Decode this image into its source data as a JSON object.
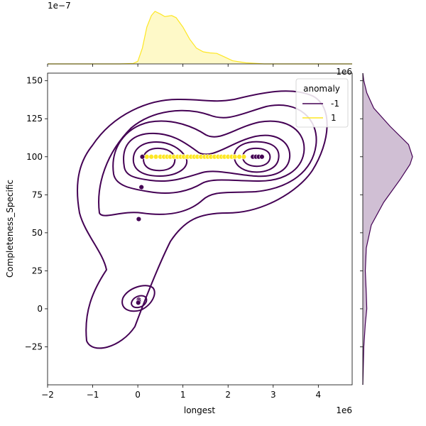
{
  "chart_data": {
    "type": "scatter",
    "subtype": "jointplot-kde",
    "xlabel": "longest",
    "ylabel": "Completeness_Specific",
    "x_offset_label": "1e6",
    "x_offset_label_top": "1e6",
    "top_marginal_offset_label": "1e−7",
    "xlim": [
      -2,
      4.75
    ],
    "ylim": [
      -50,
      155
    ],
    "x_unit_multiplier": 1000000,
    "xticks": [
      -2,
      -1,
      0,
      1,
      2,
      3,
      4
    ],
    "yticks": [
      -25,
      0,
      25,
      50,
      75,
      100,
      125,
      150
    ],
    "grid": false,
    "legend": {
      "title": "anomaly",
      "placement": "top-right",
      "entries": [
        {
          "label": "-1",
          "color": "#440154"
        },
        {
          "label": "1",
          "color": "#fde725"
        }
      ]
    },
    "series": [
      {
        "name": "-1",
        "color": "#440154",
        "points": [
          [
            0.1,
            100
          ],
          [
            0.08,
            80
          ],
          [
            0.02,
            59
          ],
          [
            0.02,
            6
          ],
          [
            0.02,
            5
          ],
          [
            0.01,
            4
          ],
          [
            2.55,
            100
          ],
          [
            2.62,
            100
          ],
          [
            2.68,
            100
          ],
          [
            2.75,
            100
          ]
        ]
      },
      {
        "name": "1",
        "color": "#fde725",
        "points": [
          [
            0.2,
            100
          ],
          [
            0.3,
            100
          ],
          [
            0.4,
            100
          ],
          [
            0.5,
            100
          ],
          [
            0.58,
            100
          ],
          [
            0.65,
            100
          ],
          [
            0.72,
            100
          ],
          [
            0.8,
            100
          ],
          [
            0.88,
            100
          ],
          [
            0.95,
            100
          ],
          [
            1.02,
            100
          ],
          [
            1.1,
            100
          ],
          [
            1.18,
            100
          ],
          [
            1.25,
            100
          ],
          [
            1.32,
            100
          ],
          [
            1.4,
            100
          ],
          [
            1.48,
            100
          ],
          [
            1.55,
            100
          ],
          [
            1.62,
            100
          ],
          [
            1.7,
            100
          ],
          [
            1.78,
            100
          ],
          [
            1.85,
            100
          ],
          [
            1.92,
            100
          ],
          [
            2.0,
            100
          ],
          [
            2.08,
            100
          ],
          [
            2.15,
            100
          ],
          [
            2.25,
            100
          ],
          [
            2.35,
            100
          ]
        ]
      }
    ],
    "marginal_x": {
      "series": "1",
      "color": "#fde725",
      "density": [
        [
          -2,
          0
        ],
        [
          -0.4,
          0
        ],
        [
          -0.1,
          0.01
        ],
        [
          0.0,
          0.05
        ],
        [
          0.1,
          0.3
        ],
        [
          0.2,
          0.7
        ],
        [
          0.3,
          0.92
        ],
        [
          0.38,
          1.0
        ],
        [
          0.5,
          0.95
        ],
        [
          0.6,
          0.9
        ],
        [
          0.75,
          0.92
        ],
        [
          0.85,
          0.88
        ],
        [
          1.0,
          0.7
        ],
        [
          1.15,
          0.47
        ],
        [
          1.3,
          0.3
        ],
        [
          1.45,
          0.23
        ],
        [
          1.6,
          0.21
        ],
        [
          1.75,
          0.2
        ],
        [
          1.9,
          0.14
        ],
        [
          2.1,
          0.06
        ],
        [
          2.4,
          0.02
        ],
        [
          2.8,
          0.0
        ],
        [
          4.75,
          0
        ]
      ]
    },
    "marginal_y": {
      "series": "-1",
      "color": "#440154",
      "density": [
        [
          -50,
          0
        ],
        [
          -25,
          0.02
        ],
        [
          -10,
          0.05
        ],
        [
          0,
          0.08
        ],
        [
          10,
          0.07
        ],
        [
          25,
          0.05
        ],
        [
          40,
          0.07
        ],
        [
          55,
          0.17
        ],
        [
          70,
          0.42
        ],
        [
          85,
          0.75
        ],
        [
          95,
          0.95
        ],
        [
          100,
          1.0
        ],
        [
          108,
          0.92
        ],
        [
          120,
          0.55
        ],
        [
          132,
          0.22
        ],
        [
          142,
          0.08
        ],
        [
          150,
          0.02
        ],
        [
          155,
          0.0
        ]
      ]
    }
  }
}
